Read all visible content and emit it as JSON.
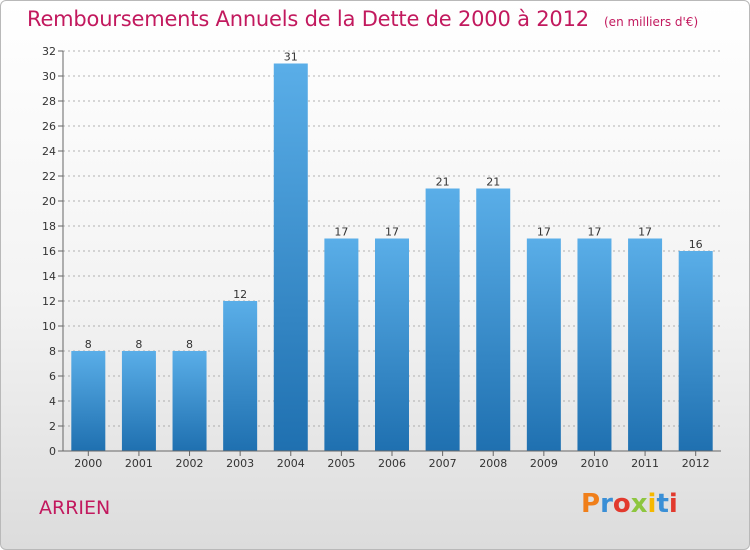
{
  "header": {
    "title": "Remboursements Annuels de la Dette de 2000 à 2012",
    "unit": "(en milliers d'€)"
  },
  "footer": {
    "city": "ARRIEN",
    "logo_letters": [
      "P",
      "r",
      "o",
      "x",
      "i",
      "t",
      "i"
    ],
    "logo_colors": [
      "#f07f1a",
      "#3a8fd6",
      "#e23a2e",
      "#8dc63f",
      "#f5b800",
      "#3a8fd6",
      "#e23a2e"
    ]
  },
  "colors": {
    "bar_top": "#5aaee8",
    "bar_bottom": "#1f70b0",
    "title": "#c2195e",
    "grid": "#9a9a9a"
  },
  "chart_data": {
    "type": "bar",
    "categories": [
      "2000",
      "2001",
      "2002",
      "2003",
      "2004",
      "2005",
      "2006",
      "2007",
      "2008",
      "2009",
      "2010",
      "2011",
      "2012"
    ],
    "values": [
      8,
      8,
      8,
      12,
      31,
      17,
      17,
      21,
      21,
      17,
      17,
      17,
      16
    ],
    "ylim": [
      0,
      32
    ],
    "yticks": [
      0,
      2,
      4,
      6,
      8,
      10,
      12,
      14,
      16,
      18,
      20,
      22,
      24,
      26,
      28,
      30,
      32
    ],
    "grid": true
  }
}
